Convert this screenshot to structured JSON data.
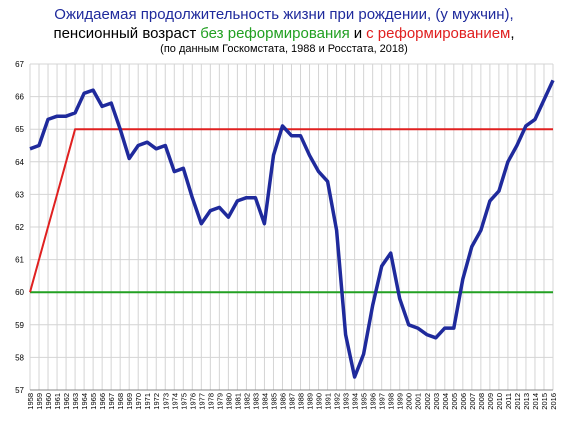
{
  "chart_data": {
    "type": "line",
    "title": "Ожидаемая продолжительность жизни при рождении, (у мужчин),",
    "title_color": "#1f2a9c",
    "subtitle_parts": [
      {
        "text": "пенсионный возраст",
        "color": "#000000"
      },
      {
        "text": "без реформирования",
        "color": "#22a022"
      },
      {
        "text": "и",
        "color": "#000000"
      },
      {
        "text": "с реформированием",
        "color": "#e02020"
      },
      {
        "text": ",",
        "color": "#000000"
      }
    ],
    "note": "(по данным Госкомстата, 1988 и Росстата, 2018)",
    "categories": [
      "1958",
      "1959",
      "1960",
      "1961",
      "1962",
      "1963",
      "1964",
      "1965",
      "1966",
      "1967",
      "1968",
      "1969",
      "1970",
      "1971",
      "1972",
      "1973",
      "1974",
      "1975",
      "1976",
      "1977",
      "1978",
      "1979",
      "1980",
      "1981",
      "1982",
      "1983",
      "1984",
      "1985",
      "1986",
      "1987",
      "1988",
      "1989",
      "1990",
      "1991",
      "1992",
      "1993",
      "1994",
      "1995",
      "1996",
      "1997",
      "1998",
      "1999",
      "2000",
      "2001",
      "2002",
      "2003",
      "2004",
      "2005",
      "2006",
      "2007",
      "2008",
      "2009",
      "2010",
      "2011",
      "2012",
      "2013",
      "2014",
      "2015",
      "2016"
    ],
    "series": [
      {
        "color": "#1f2a9c",
        "values": [
          64.4,
          64.5,
          65.3,
          65.4,
          65.4,
          65.5,
          66.1,
          66.2,
          65.7,
          65.8,
          65.0,
          64.1,
          64.5,
          64.6,
          64.4,
          64.5,
          63.7,
          63.8,
          62.9,
          62.1,
          62.5,
          62.6,
          62.3,
          62.8,
          62.9,
          62.9,
          62.1,
          64.2,
          65.1,
          64.8,
          64.8,
          64.2,
          63.7,
          63.4,
          61.9,
          58.7,
          57.4,
          58.1,
          59.6,
          60.8,
          61.2,
          59.8,
          59.0,
          58.9,
          58.7,
          58.6,
          58.9,
          58.9,
          60.4,
          61.4,
          61.9,
          62.8,
          63.1,
          64.0,
          64.5,
          65.1,
          65.3,
          65.9,
          66.5
        ]
      },
      {
        "color": "#e02020",
        "values": [
          60,
          61,
          62,
          63,
          64,
          65,
          65,
          65,
          65,
          65,
          65,
          65,
          65,
          65,
          65,
          65,
          65,
          65,
          65,
          65,
          65,
          65,
          65,
          65,
          65,
          65,
          65,
          65,
          65,
          65,
          65,
          65,
          65,
          65,
          65,
          65,
          65,
          65,
          65,
          65,
          65,
          65,
          65,
          65,
          65,
          65,
          65,
          65,
          65,
          65,
          65,
          65,
          65,
          65,
          65,
          65,
          65,
          65,
          65
        ]
      },
      {
        "color": "#22a022",
        "values": [
          60,
          60,
          60,
          60,
          60,
          60,
          60,
          60,
          60,
          60,
          60,
          60,
          60,
          60,
          60,
          60,
          60,
          60,
          60,
          60,
          60,
          60,
          60,
          60,
          60,
          60,
          60,
          60,
          60,
          60,
          60,
          60,
          60,
          60,
          60,
          60,
          60,
          60,
          60,
          60,
          60,
          60,
          60,
          60,
          60,
          60,
          60,
          60,
          60,
          60,
          60,
          60,
          60,
          60,
          60,
          60,
          60,
          60,
          60
        ]
      }
    ],
    "ylim": [
      57,
      67
    ],
    "yticks": [
      57,
      58,
      59,
      60,
      61,
      62,
      63,
      64,
      65,
      66,
      67
    ],
    "grid": true
  }
}
